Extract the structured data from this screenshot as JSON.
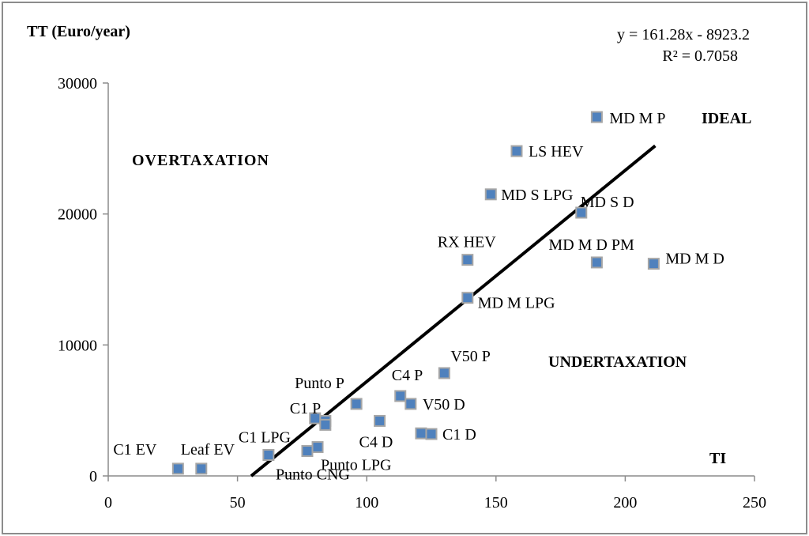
{
  "chart_data": {
    "type": "scatter",
    "ylabel": "TT (Euro/year)",
    "xlabel": "TI",
    "xlim": [
      0,
      250
    ],
    "ylim": [
      0,
      30000
    ],
    "x_ticks": [
      0,
      50,
      100,
      150,
      200,
      250
    ],
    "y_ticks": [
      0,
      10000,
      20000,
      30000
    ],
    "x_tick_labels": [
      "0",
      "50",
      "100",
      "150",
      "200",
      "250"
    ],
    "y_tick_labels": [
      "0",
      "10000",
      "20000",
      "30000"
    ],
    "grid": false,
    "marker_color": "#4f81bd",
    "marker_edge_color": "#a6a6a6",
    "line_color": "#000000",
    "trendline": {
      "type": "linear",
      "slope": 161.28,
      "intercept": -8923.2,
      "x_range": [
        55.3,
        211.6
      ],
      "equation": "y = 161.28x - 8923.2",
      "r_squared": "R² = 0.7058"
    },
    "region_labels": [
      "OVERTAXATION",
      "IDEAL",
      "UNDERTAXATION",
      "TI"
    ],
    "points": [
      {
        "label": "C1 EV",
        "x": 27,
        "y": 550
      },
      {
        "label": "Leaf EV",
        "x": 36,
        "y": 550
      },
      {
        "label": "C1 LPG",
        "x": 62,
        "y": 1600
      },
      {
        "label": "Punto CNG",
        "x": 77,
        "y": 1900
      },
      {
        "label": "Punto LPG",
        "x": 81,
        "y": 2200
      },
      {
        "label": "C1 P",
        "x": 80,
        "y": 4400
      },
      {
        "label": "",
        "x": 84,
        "y": 4200
      },
      {
        "label": "",
        "x": 84,
        "y": 3900
      },
      {
        "label": "Punto P",
        "x": 96,
        "y": 5500
      },
      {
        "label": "C4 D",
        "x": 105,
        "y": 4200
      },
      {
        "label": "C4 P",
        "x": 113,
        "y": 6100
      },
      {
        "label": "V50 D",
        "x": 117,
        "y": 5500
      },
      {
        "label": "",
        "x": 121,
        "y": 3250
      },
      {
        "label": "C1 D",
        "x": 125,
        "y": 3200
      },
      {
        "label": "V50 P",
        "x": 130,
        "y": 7850
      },
      {
        "label": "MD M LPG",
        "x": 139,
        "y": 13600
      },
      {
        "label": "RX HEV",
        "x": 139,
        "y": 16500
      },
      {
        "label": "MD S LPG",
        "x": 148,
        "y": 21500
      },
      {
        "label": "LS HEV",
        "x": 158,
        "y": 24800
      },
      {
        "label": "MD S D",
        "x": 183,
        "y": 20100
      },
      {
        "label": "MD M D PM",
        "x": 189,
        "y": 16300
      },
      {
        "label": "MD M P",
        "x": 189,
        "y": 27400
      },
      {
        "label": "MD M D",
        "x": 211,
        "y": 16200
      }
    ]
  }
}
